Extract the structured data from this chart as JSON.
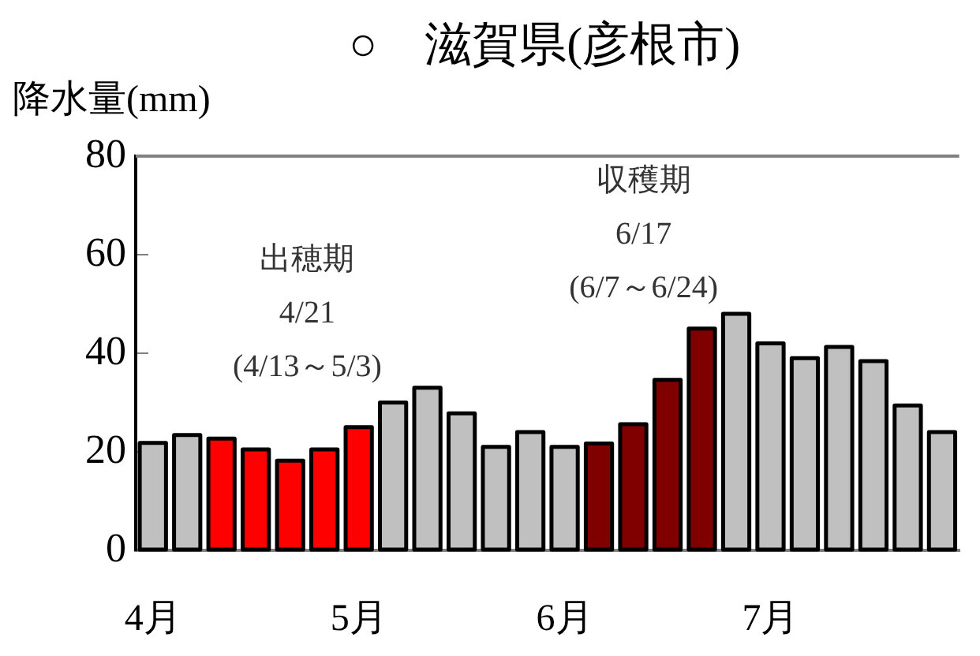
{
  "chart_data": {
    "type": "bar",
    "title": "○　滋賀県(彦根市)",
    "ylabel": "降水量(mm)",
    "categories": [
      "4月",
      null,
      null,
      null,
      null,
      null,
      "5月",
      null,
      null,
      null,
      null,
      null,
      "6月",
      null,
      null,
      null,
      null,
      null,
      "7月",
      null,
      null,
      null,
      null,
      null
    ],
    "values": [
      21.8,
      23.4,
      22.7,
      20.5,
      18.2,
      20.5,
      25,
      30,
      33,
      27.8,
      21,
      24,
      21,
      21.7,
      25.6,
      34.6,
      45,
      48,
      42,
      39,
      41.3,
      38.4,
      29.4,
      24
    ],
    "colors": [
      "#c0c0c0",
      "#c0c0c0",
      "#ff0000",
      "#ff0000",
      "#ff0000",
      "#ff0000",
      "#ff0000",
      "#c0c0c0",
      "#c0c0c0",
      "#c0c0c0",
      "#c0c0c0",
      "#c0c0c0",
      "#c0c0c0",
      "#800000",
      "#800000",
      "#800000",
      "#800000",
      "#c0c0c0",
      "#c0c0c0",
      "#c0c0c0",
      "#c0c0c0",
      "#c0c0c0",
      "#c0c0c0",
      "#c0c0c0"
    ],
    "ylim": [
      0,
      80
    ],
    "yticks": [
      0,
      20,
      40,
      60,
      80
    ],
    "grid": false,
    "legend": false,
    "annotations": [
      "出穂期\n4/21\n(4/13～5/3)",
      "収穫期\n6/17\n(6/7～6/24)"
    ]
  }
}
